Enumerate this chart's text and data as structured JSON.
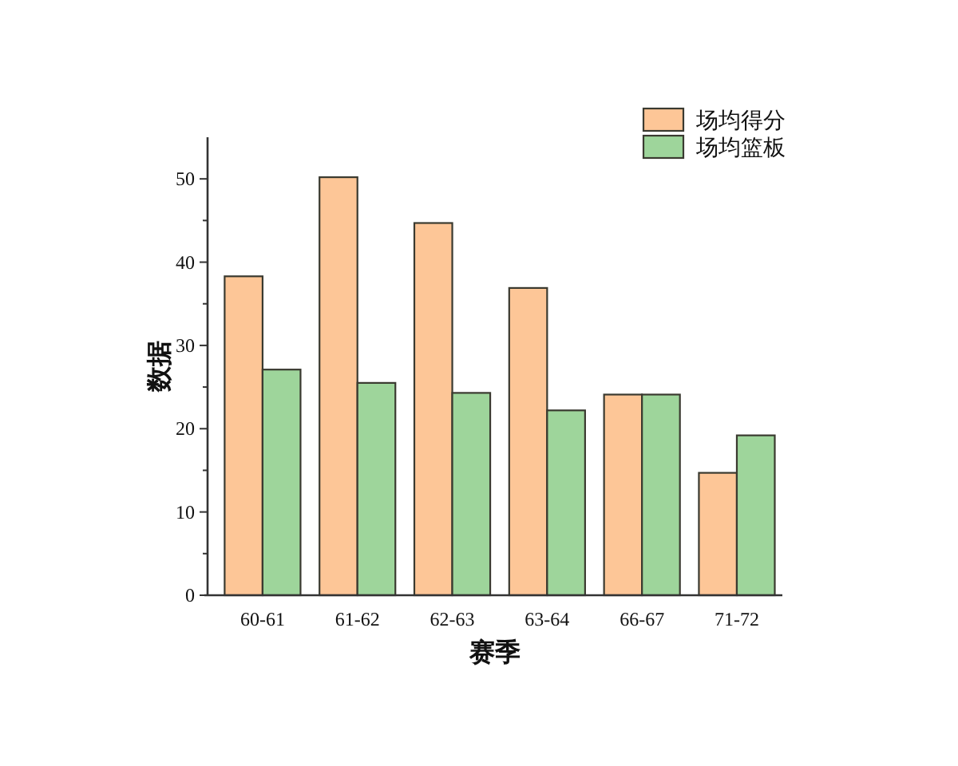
{
  "chart_data": {
    "type": "bar",
    "xlabel": "赛季",
    "ylabel": "数据",
    "categories": [
      "60-61",
      "61-62",
      "62-63",
      "63-64",
      "66-67",
      "71-72"
    ],
    "series": [
      {
        "name": "场均得分",
        "color": "#fdc697",
        "values": [
          38.3,
          50.2,
          44.7,
          36.9,
          24.1,
          14.7
        ]
      },
      {
        "name": "场均篮板",
        "color": "#9ed59b",
        "values": [
          27.1,
          25.5,
          24.3,
          22.2,
          24.1,
          19.2
        ]
      }
    ],
    "ylim": [
      0,
      55
    ],
    "yticks": [
      0,
      {
        "value": 5,
        "label": null
      },
      10,
      {
        "value": 15,
        "label": null
      },
      20,
      {
        "value": 25,
        "label": null
      },
      30,
      {
        "value": 35,
        "label": null
      },
      40,
      {
        "value": 45,
        "label": null
      },
      50
    ],
    "legend": "top right"
  }
}
